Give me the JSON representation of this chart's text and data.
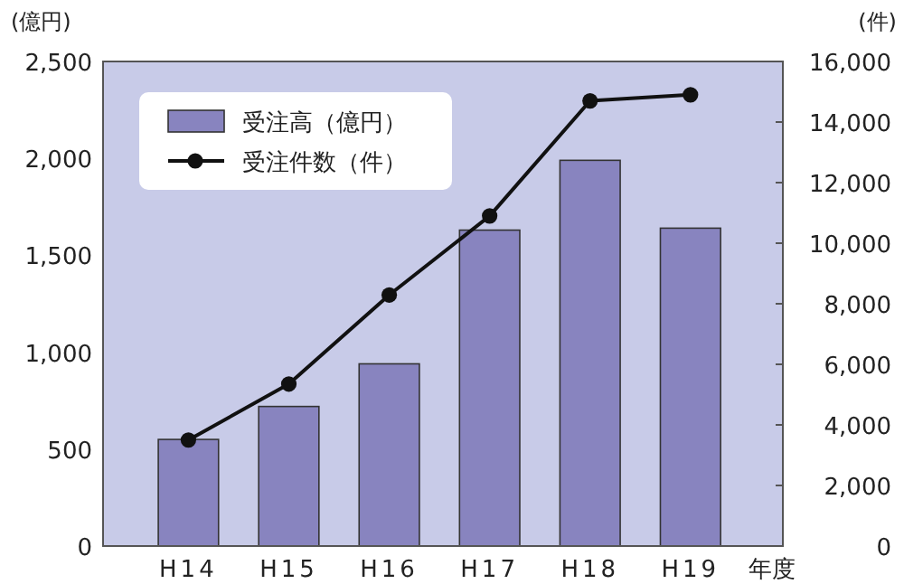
{
  "chart_data": {
    "type": "bar",
    "ylabel": "(億円)",
    "y2label": "(件)",
    "xlabel": "年度",
    "categories": [
      "H14",
      "H15",
      "H16",
      "H17",
      "H18",
      "H19"
    ],
    "series": [
      {
        "name": "受注高（億円）",
        "color": "#8884bf",
        "values": [
          550,
          720,
          940,
          1630,
          1990,
          1640
        ]
      },
      {
        "name": "受注件数（件）",
        "type": "line",
        "axis": "y2",
        "color": "#111111",
        "marker": "circle",
        "values": [
          3500,
          5350,
          8290,
          10900,
          14700,
          14900
        ]
      }
    ],
    "ylim": [
      0,
      2500
    ],
    "yticks": [
      0,
      {
        "value": 500,
        "label": "500"
      },
      {
        "value": 1000,
        "label": "1,000"
      },
      {
        "value": 1500,
        "label": "1,500"
      },
      {
        "value": 2000,
        "label": "2,000"
      },
      {
        "value": 2500,
        "label": "2,500"
      }
    ],
    "y2lim": [
      0,
      16000
    ],
    "y2ticks": [
      0,
      {
        "value": 2000,
        "label": "2,000"
      },
      {
        "value": 4000,
        "label": "4,000"
      },
      {
        "value": 6000,
        "label": "6,000"
      },
      {
        "value": 8000,
        "label": "8,000"
      },
      {
        "value": 10000,
        "label": "10,000"
      },
      {
        "value": 12000,
        "label": "12,000"
      },
      {
        "value": 14000,
        "label": "14,000"
      },
      {
        "value": 16000,
        "label": "16,000"
      }
    ],
    "legend": "top left",
    "grid": false
  }
}
